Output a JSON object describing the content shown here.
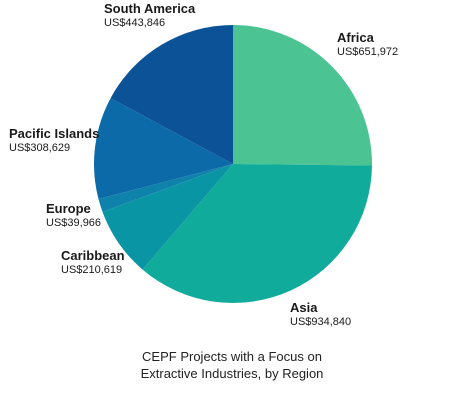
{
  "chart_data": {
    "type": "pie",
    "title": "CEPF Projects with a Focus on Extractive Industries, by Region",
    "title_lines": [
      "CEPF Projects with a Focus on",
      "Extractive Industries, by Region"
    ],
    "slices": [
      {
        "label": "Africa",
        "value": 651972,
        "value_label": "US$651,972",
        "color": "#4cc393"
      },
      {
        "label": "Asia",
        "value": 934840,
        "value_label": "US$934,840",
        "color": "#10ab9b"
      },
      {
        "label": "Caribbean",
        "value": 210619,
        "value_label": "US$210,619",
        "color": "#0a95a5"
      },
      {
        "label": "Europe",
        "value": 39966,
        "value_label": "US$39,966",
        "color": "#0e82ab"
      },
      {
        "label": "Pacific Islands",
        "value": 308629,
        "value_label": "US$308,629",
        "color": "#0d6aa8"
      },
      {
        "label": "South America",
        "value": 443846,
        "value_label": "US$443,846",
        "color": "#0b5396"
      }
    ],
    "start_angle": "12 o'clock",
    "direction": "clockwise"
  }
}
